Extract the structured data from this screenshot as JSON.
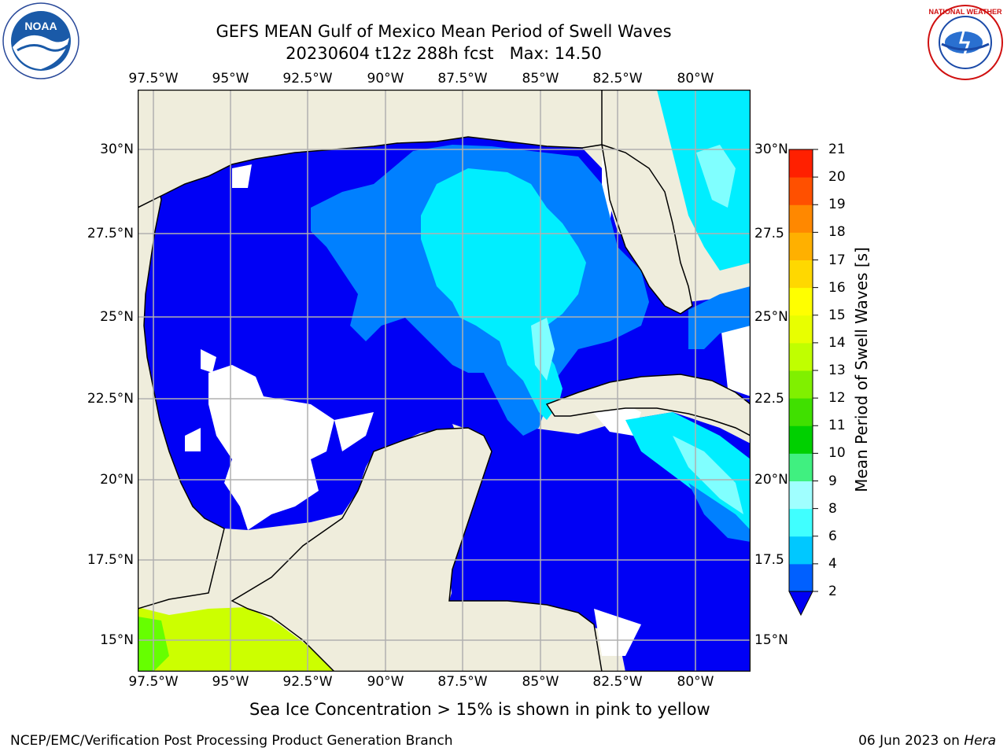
{
  "header": {
    "title_line1": "GEFS MEAN Gulf of Mexico Mean Period of Swell Waves",
    "title_line2": "20230604 t12z 288h fcst   Max: 14.50"
  },
  "logos": {
    "noaa_text": "NOAA",
    "nws_text": "NATIONAL WEATHER SERVICE"
  },
  "map": {
    "lon_ticks": [
      "97.5°W",
      "95°W",
      "92.5°W",
      "90°W",
      "87.5°W",
      "85°W",
      "82.5°W",
      "80°W"
    ],
    "lat_ticks_left": [
      "30°N",
      "27.5°N",
      "25°N",
      "22.5°N",
      "20°N",
      "17.5°N",
      "15°N"
    ],
    "lat_ticks_right": [
      "30°N",
      "27.5",
      "25°N",
      "22.5",
      "20°N",
      "17.5",
      "15°N"
    ],
    "colors": {
      "land": "#efeddc",
      "ocean_low": "#0000f5",
      "period_4_6": "#0080ff",
      "period_6_8": "#00eeff",
      "period_8_9": "#80ffff",
      "period_12_14": "#ccff00",
      "period_11_12": "#66ff00",
      "grid": "#b0b0b0"
    }
  },
  "colorbar": {
    "label": "Mean Period of Swell Waves [s]",
    "ticks": [
      "2",
      "4",
      "6",
      "8",
      "9",
      "10",
      "11",
      "12",
      "13",
      "14",
      "15",
      "16",
      "17",
      "18",
      "19",
      "20",
      "21"
    ],
    "colors": [
      "#0060ff",
      "#00c8ff",
      "#40ffff",
      "#a0ffff",
      "#40f080",
      "#00d000",
      "#40e000",
      "#80f000",
      "#c0ff00",
      "#e8ff00",
      "#ffff00",
      "#ffd800",
      "#ffb000",
      "#ff8800",
      "#ff5000",
      "#ff2000",
      "#ff0000"
    ],
    "extend_color": "#0000f5"
  },
  "annotation": "Sea Ice Concentration > 15% is shown in pink to yellow",
  "footer": {
    "left": "NCEP/EMC/Verification Post Processing Product Generation Branch",
    "date": "06 Jun 2023 on ",
    "host": "Hera"
  }
}
